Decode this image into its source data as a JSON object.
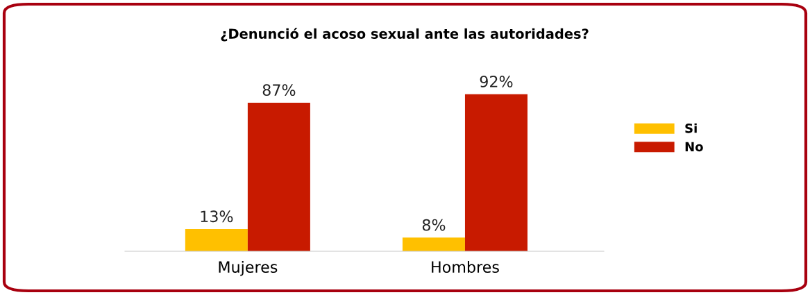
{
  "chart_data": {
    "type": "bar",
    "title": "¿Denunció el acoso sexual ante las autoridades?",
    "categories": [
      "Mujeres",
      "Hombres"
    ],
    "series": [
      {
        "name": "Si",
        "color": "#ffc000",
        "values": [
          13,
          8
        ],
        "value_labels": [
          "13%",
          "8%"
        ]
      },
      {
        "name": "No",
        "color": "#c81a00",
        "values": [
          87,
          92
        ],
        "value_labels": [
          "87%",
          "92%"
        ]
      }
    ],
    "legend": "right",
    "grid": false
  }
}
